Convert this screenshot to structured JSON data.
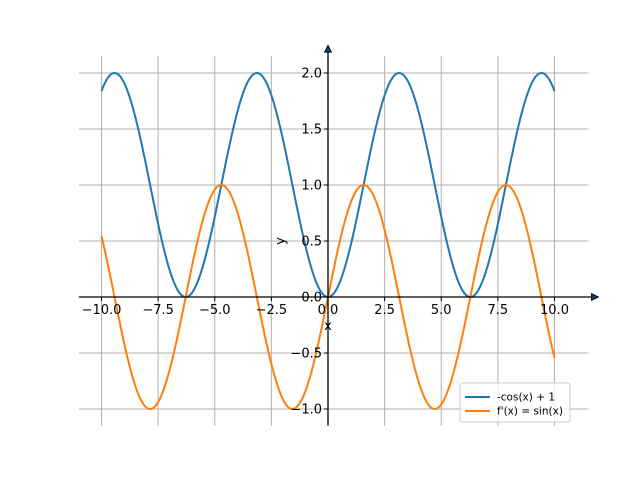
{
  "chart_data": {
    "type": "line",
    "title": "",
    "xlabel": "x",
    "ylabel": "y",
    "xlim": [
      -11,
      11.5
    ],
    "ylim": [
      -1.15,
      2.15
    ],
    "grid": true,
    "spines": "centered-at-origin-with-arrows",
    "x_ticks": [
      -10,
      -7.5,
      -5,
      -2.5,
      0,
      2.5,
      5,
      7.5,
      10
    ],
    "x_tick_labels": [
      "−10.0",
      "−7.5",
      "−5.0",
      "−2.5",
      "0.0",
      "2.5",
      "5.0",
      "7.5",
      "10.0"
    ],
    "y_ticks": [
      -1,
      -0.5,
      0,
      0.5,
      1,
      1.5,
      2
    ],
    "y_tick_labels": [
      "−1.0",
      "−0.5",
      "0.0",
      "0.5",
      "1.0",
      "1.5",
      "2.0"
    ],
    "x_domain": [
      -10,
      10
    ],
    "series": [
      {
        "name": "-cos(x) + 1",
        "expression": "1 - cos(x)",
        "color": "#1f77b4"
      },
      {
        "name": "f'(x) = sin(x)",
        "expression": "sin(x)",
        "color": "#ff7f0e"
      }
    ],
    "legend": {
      "position": "bottom-right",
      "entries": [
        "-cos(x) + 1",
        "f'(x) = sin(x)"
      ]
    }
  }
}
